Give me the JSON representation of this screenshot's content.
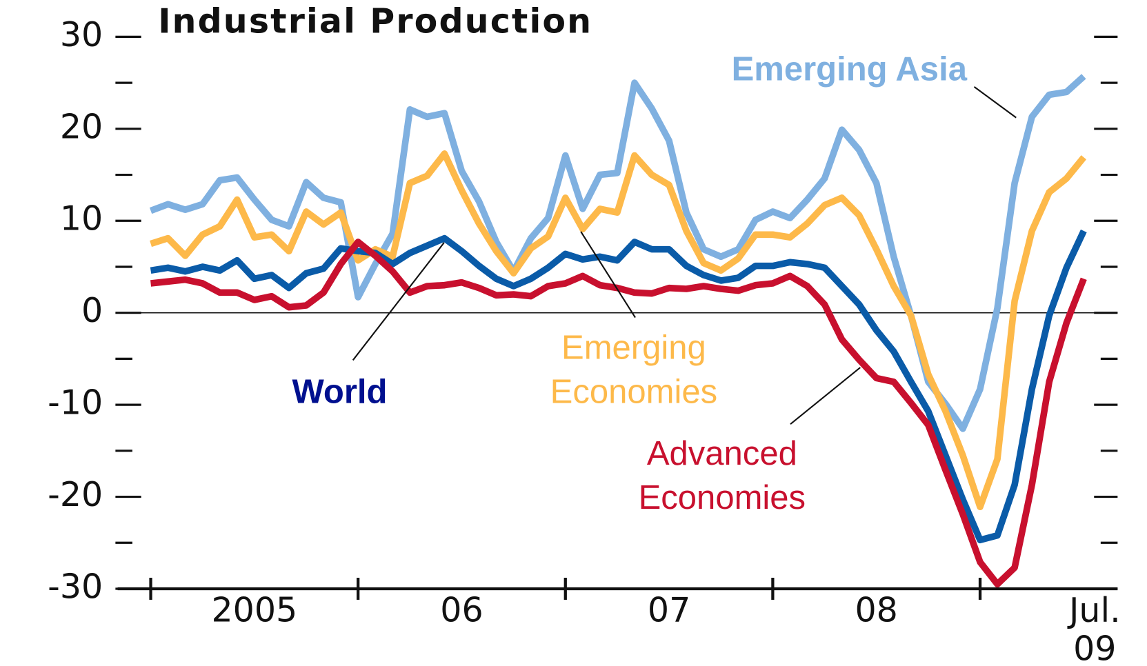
{
  "chart_data": {
    "type": "line",
    "title": "Industrial Production",
    "categories": [
      null,
      null,
      null,
      null,
      null,
      null,
      "2005",
      null,
      null,
      null,
      null,
      null,
      null,
      null,
      null,
      null,
      null,
      null,
      "06",
      null,
      null,
      null,
      null,
      null,
      null,
      null,
      null,
      null,
      null,
      null,
      "07",
      null,
      null,
      null,
      null,
      null,
      null,
      null,
      null,
      null,
      null,
      null,
      "08",
      null,
      null,
      null,
      null,
      null,
      null,
      null,
      null,
      null,
      null,
      null,
      "Jul. 09"
    ],
    "ylim": [
      -30,
      30
    ],
    "yticks": [
      -30,
      -20,
      -10,
      0,
      10,
      20,
      30
    ],
    "series": [
      {
        "name": "Emerging Asia",
        "color": "#7fb0e0",
        "values": [
          11.1,
          11.8,
          11.2,
          11.8,
          14.4,
          14.7,
          12.3,
          10.1,
          9.4,
          14.2,
          12.5,
          12.0,
          1.7,
          5.3,
          8.6,
          22.1,
          21.3,
          21.7,
          15.4,
          12.1,
          7.7,
          4.5,
          8.1,
          10.3,
          17.1,
          11.3,
          15.0,
          15.2,
          25.0,
          22.2,
          18.7,
          10.9,
          6.9,
          6.1,
          6.9,
          10.1,
          11.0,
          10.3,
          12.3,
          14.6,
          19.9,
          17.7,
          14.1,
          6.1,
          -0.3,
          -7.5,
          -9.9,
          -12.6,
          -8.3,
          0.5,
          14.1,
          21.3,
          23.7,
          24.0,
          25.7
        ]
      },
      {
        "name": "Emerging Economies",
        "color": "#fdb94a",
        "values": [
          7.5,
          8.1,
          6.2,
          8.5,
          9.4,
          12.3,
          8.2,
          8.5,
          6.7,
          11.0,
          9.6,
          10.9,
          5.7,
          6.9,
          6.1,
          14.1,
          14.9,
          17.3,
          13.3,
          9.7,
          6.7,
          4.3,
          7.0,
          8.3,
          12.5,
          9.1,
          11.3,
          10.9,
          17.1,
          15.0,
          13.9,
          8.9,
          5.4,
          4.6,
          5.9,
          8.5,
          8.5,
          8.2,
          9.7,
          11.7,
          12.5,
          10.6,
          6.9,
          2.9,
          -0.3,
          -6.7,
          -10.7,
          -15.5,
          -21.1,
          -15.9,
          1.3,
          8.9,
          13.1,
          14.6,
          16.9
        ]
      },
      {
        "name": "World",
        "color": "#0a5ba8",
        "values": [
          4.6,
          4.9,
          4.5,
          5.0,
          4.6,
          5.7,
          3.7,
          4.1,
          2.7,
          4.3,
          4.8,
          7.0,
          6.7,
          6.5,
          5.3,
          6.5,
          7.3,
          8.1,
          6.7,
          5.1,
          3.7,
          2.9,
          3.7,
          4.9,
          6.4,
          5.8,
          6.1,
          5.7,
          7.7,
          6.9,
          6.9,
          5.1,
          4.1,
          3.5,
          3.8,
          5.1,
          5.1,
          5.5,
          5.3,
          4.9,
          2.9,
          0.9,
          -1.9,
          -4.2,
          -7.5,
          -10.7,
          -15.5,
          -20.3,
          -24.7,
          -24.2,
          -18.7,
          -8.3,
          -0.3,
          4.9,
          8.9
        ]
      },
      {
        "name": "Advanced Economies",
        "color": "#c8102e",
        "values": [
          3.2,
          3.4,
          3.6,
          3.2,
          2.2,
          2.2,
          1.4,
          1.8,
          0.6,
          0.8,
          2.2,
          5.3,
          7.7,
          6.2,
          4.5,
          2.2,
          2.9,
          3.0,
          3.3,
          2.7,
          1.9,
          2.0,
          1.8,
          2.9,
          3.2,
          4.0,
          3.0,
          2.7,
          2.2,
          2.1,
          2.7,
          2.6,
          2.9,
          2.6,
          2.4,
          3.0,
          3.2,
          4.0,
          2.9,
          0.9,
          -2.9,
          -5.1,
          -7.1,
          -7.5,
          -9.8,
          -12.2,
          -17.1,
          -21.9,
          -27.1,
          -29.5,
          -27.7,
          -18.7,
          -7.5,
          -1.1,
          3.7
        ]
      }
    ]
  }
}
